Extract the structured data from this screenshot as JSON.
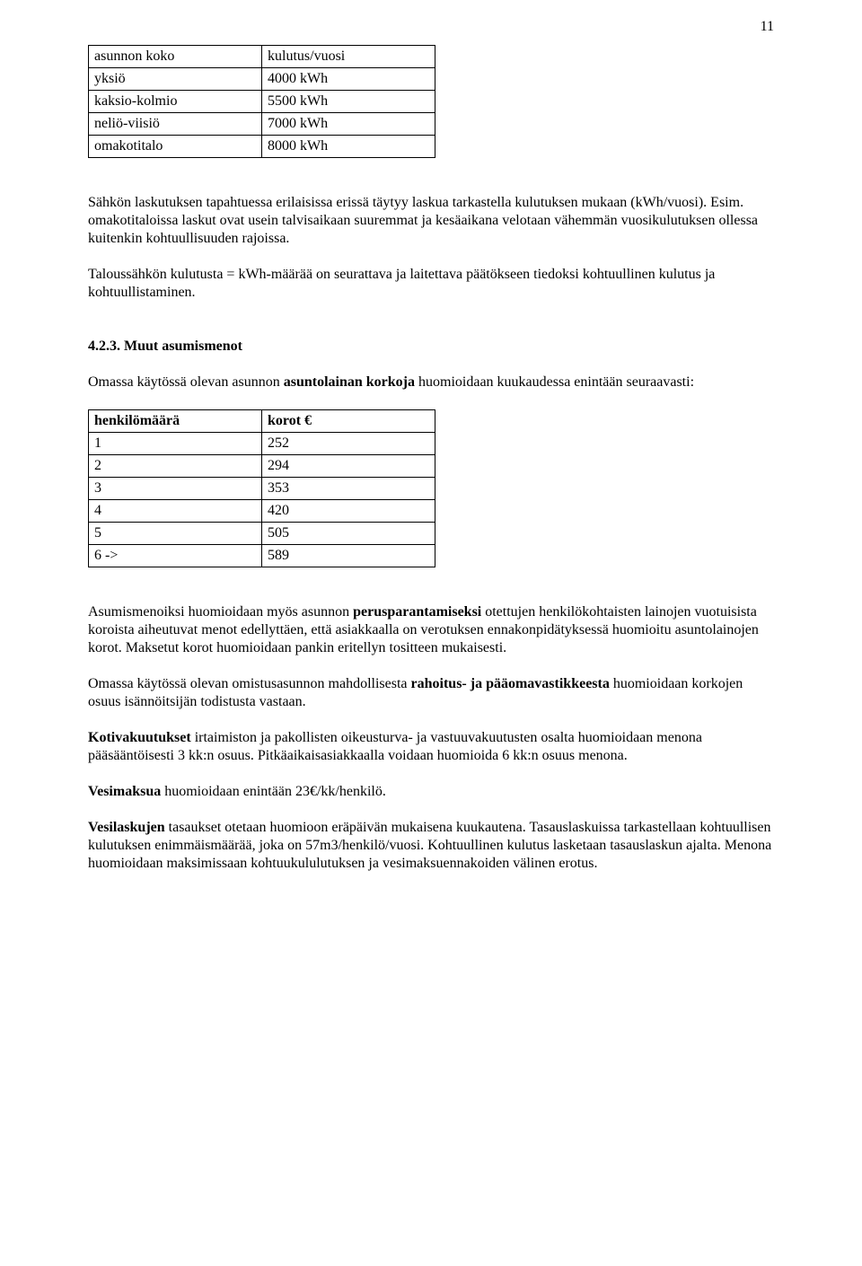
{
  "page_number": "11",
  "table1": {
    "headers": [
      "asunnon koko",
      "kulutus/vuosi"
    ],
    "rows": [
      [
        "yksiö",
        "4000 kWh"
      ],
      [
        "kaksio-kolmio",
        "5500 kWh"
      ],
      [
        "neliö-viisiö",
        "7000 kWh"
      ],
      [
        "omakotitalo",
        "8000 kWh"
      ]
    ]
  },
  "para1": "Sähkön laskutuksen tapahtuessa erilaisissa erissä täytyy laskua tarkastella kulutuksen mukaan (kWh/vuosi). Esim. omakotitaloissa laskut ovat usein talvisaikaan suuremmat ja kesäaikana velotaan vähemmän vuosikulutuksen ollessa kuitenkin kohtuullisuuden rajoissa.",
  "para2": "Taloussähkön kulutusta = kWh-määrää on seurattava ja laitettava päätökseen tiedoksi kohtuullinen kulutus ja kohtuullistaminen.",
  "section_heading": "4.2.3. Muut asumismenot",
  "para3_pre": "Omassa käytössä olevan asunnon ",
  "para3_bold": "asuntolainan korkoja",
  "para3_post": " huomioidaan kuukaudessa enintään seuraavasti:",
  "table2": {
    "headers": [
      "henkilömäärä",
      "korot €"
    ],
    "rows": [
      [
        "1",
        "252"
      ],
      [
        "2",
        "294"
      ],
      [
        "3",
        "353"
      ],
      [
        "4",
        "420"
      ],
      [
        "5",
        "505"
      ],
      [
        "6 ->",
        "589"
      ]
    ]
  },
  "para4_a": "Asumismenoiksi huomioidaan myös asunnon ",
  "para4_b": "perusparantamiseksi",
  "para4_c": " otettujen henkilökohtaisten lainojen vuotuisista koroista aiheutuvat menot edellyttäen, että asiakkaalla on verotuksen ennakonpidätyksessä huomioitu asuntolainojen korot. Maksetut korot huomioidaan pankin eritellyn tositteen mukaisesti.",
  "para5_a": "Omassa käytössä olevan omistusasunnon mahdollisesta ",
  "para5_b": "rahoitus- ja pääomavastikkeesta",
  "para5_c": " huomioidaan korkojen osuus isännöitsijän todistusta vastaan.",
  "para6_a": "Kotivakuutukset",
  "para6_b": " irtaimiston ja pakollisten oikeusturva- ja vastuuvakuutusten osalta huomioidaan menona pääsääntöisesti 3 kk:n osuus. Pitkäaikaisasiakkaalla voidaan huomioida 6 kk:n osuus menona.",
  "para7_a": "Vesimaksua",
  "para7_b": " huomioidaan enintään 23€/kk/henkilö.",
  "para8_a": "Vesilaskujen",
  "para8_b": " tasaukset otetaan huomioon eräpäivän mukaisena kuukautena. Tasauslaskuissa tarkastellaan kohtuullisen kulutuksen enimmäismäärää, joka on 57m3/henkilö/vuosi. Kohtuullinen kulutus lasketaan tasauslaskun ajalta. Menona huomioidaan maksimissaan kohtuukululutuksen ja vesimaksuennakoiden välinen erotus."
}
